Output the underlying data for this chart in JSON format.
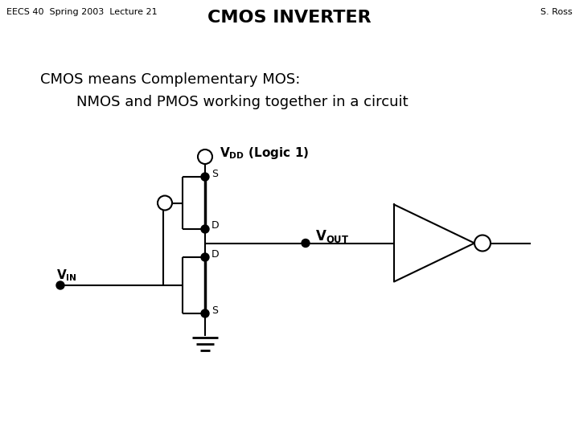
{
  "title": "CMOS INVERTER",
  "header_left": "EECS 40  Spring 2003  Lecture 21",
  "header_right": "S. Ross",
  "line1": "CMOS means Complementary MOS:",
  "line2": "NMOS and PMOS working together in a circuit",
  "bg_color": "#ffffff",
  "fg_color": "#000000"
}
